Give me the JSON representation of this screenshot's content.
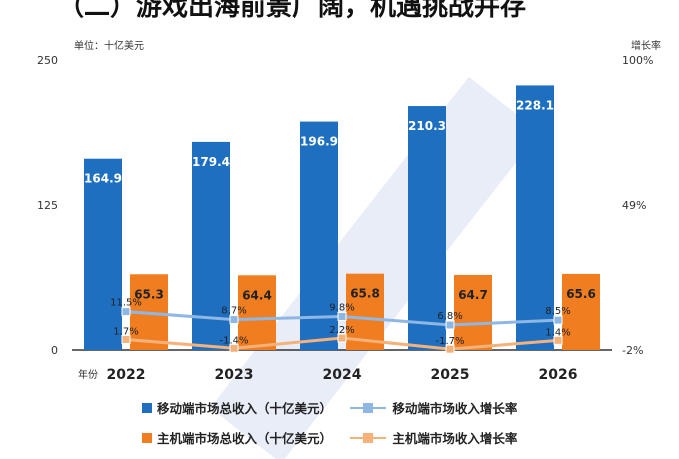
{
  "heading": "（二）游戏出海前景广阔，机遇挑战并存",
  "units": {
    "left": "单位：十亿美元",
    "right": "增长率"
  },
  "colors": {
    "mobile": "#1f6fc0",
    "console": "#f07d1f",
    "mobile_line": "#8fb7e3",
    "console_line": "#f4b27a",
    "axis": "#333333"
  },
  "chart_data": {
    "type": "bar",
    "categories": [
      "2022",
      "2023",
      "2024",
      "2025",
      "2026"
    ],
    "xlabel": "年份",
    "ylim": [
      0,
      250
    ],
    "yticks": [
      "0",
      "125",
      "250"
    ],
    "ylim_right": [
      -2,
      100
    ],
    "yticks_right": [
      "-2%",
      "49%",
      "100%"
    ],
    "series": [
      {
        "name": "移动端市场总收入（十亿美元）",
        "kind": "bar",
        "axis": "left",
        "values": [
          164.9,
          179.4,
          196.9,
          210.3,
          228.1
        ],
        "labels": [
          "164.9",
          "179.4",
          "196.9",
          "210.3",
          "228.1"
        ]
      },
      {
        "name": "主机端市场总收入（十亿美元）",
        "kind": "bar",
        "axis": "left",
        "values": [
          65.3,
          64.4,
          65.8,
          64.7,
          65.6
        ],
        "labels": [
          "65.3",
          "64.4",
          "65.8",
          "64.7",
          "65.6"
        ]
      },
      {
        "name": "移动端市场收入增长率",
        "kind": "line",
        "axis": "right",
        "values": [
          11.5,
          8.7,
          9.8,
          6.8,
          8.5
        ],
        "labels": [
          "11.5%",
          "8.7%",
          "9.8%",
          "6.8%",
          "8.5%"
        ]
      },
      {
        "name": "主机端市场收入增长率",
        "kind": "line",
        "axis": "right",
        "values": [
          1.7,
          -1.4,
          2.2,
          -1.7,
          1.4
        ],
        "labels": [
          "1.7%",
          "-1.4%",
          "2.2%",
          "-1.7%",
          "1.4%"
        ]
      }
    ]
  }
}
